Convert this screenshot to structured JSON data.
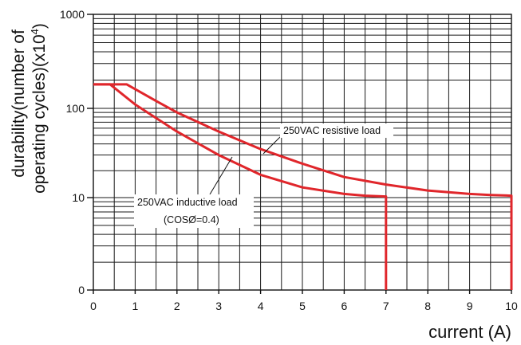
{
  "chart_data": {
    "type": "line",
    "title": "",
    "xlabel": "current (A)",
    "ylabel_lines": [
      "durability(number of",
      "operating cycles)(x10",
      "4",
      ")"
    ],
    "x_range": [
      0,
      10
    ],
    "x_ticks": [
      "0",
      "1",
      "2",
      "3",
      "4",
      "5",
      "6",
      "7",
      "8",
      "9",
      "10"
    ],
    "y_scale": "log",
    "y_ticks": [
      "1000",
      "100",
      "10",
      "0"
    ],
    "grid": true,
    "series": [
      {
        "name": "250VAC resistive load",
        "color": "#e0262b",
        "x": [
          0,
          0.8,
          1.5,
          2,
          3,
          4,
          5,
          6,
          7,
          8,
          9,
          9.5,
          10,
          10,
          10
        ],
        "y": [
          180,
          180,
          120,
          90,
          55,
          35,
          24,
          17,
          14,
          12,
          11,
          10.7,
          10.5,
          1.5,
          1
        ]
      },
      {
        "name": "250VAC inductive load",
        "color": "#e0262b",
        "x": [
          0,
          0.4,
          1,
          2,
          3,
          4,
          5,
          6,
          6.5,
          7,
          7,
          7
        ],
        "y": [
          180,
          180,
          110,
          55,
          30,
          18,
          13,
          11,
          10.5,
          10.3,
          1.5,
          1
        ]
      }
    ],
    "annotations": [
      {
        "lines": [
          "250VAC resistive load"
        ],
        "series": 0
      },
      {
        "lines": [
          "250VAC inductive load",
          "(COSØ=0.4)"
        ],
        "series": 1
      }
    ]
  }
}
